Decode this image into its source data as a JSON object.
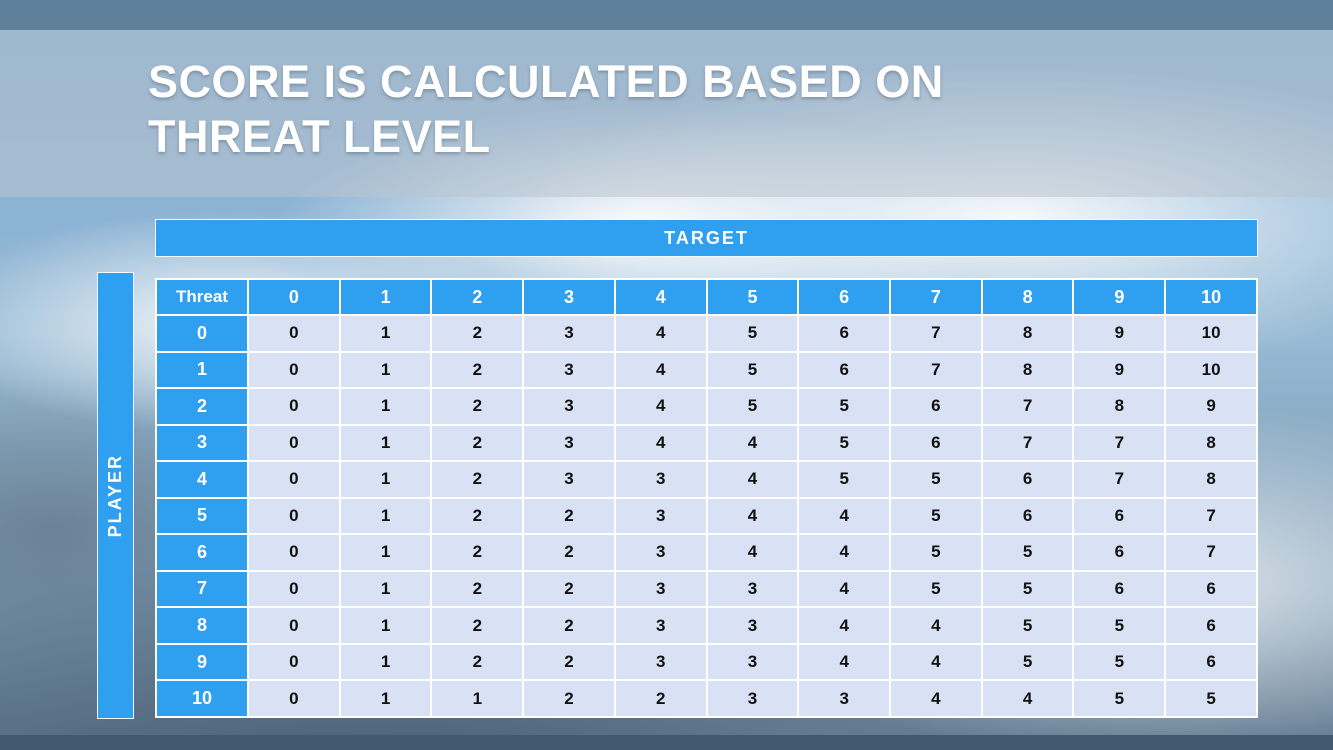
{
  "slide": {
    "title_line1": "SCORE IS CALCULATED BASED ON",
    "title_line2": "THREAT LEVEL"
  },
  "axes": {
    "target_label": "TARGET",
    "player_label": "PLAYER"
  },
  "table": {
    "corner_label": "Threat",
    "column_headers": [
      "0",
      "1",
      "2",
      "3",
      "4",
      "5",
      "6",
      "7",
      "8",
      "9",
      "10"
    ],
    "rows": [
      {
        "label": "0",
        "values": [
          "0",
          "1",
          "2",
          "3",
          "4",
          "5",
          "6",
          "7",
          "8",
          "9",
          "10"
        ]
      },
      {
        "label": "1",
        "values": [
          "0",
          "1",
          "2",
          "3",
          "4",
          "5",
          "6",
          "7",
          "8",
          "9",
          "10"
        ]
      },
      {
        "label": "2",
        "values": [
          "0",
          "1",
          "2",
          "3",
          "4",
          "5",
          "5",
          "6",
          "7",
          "8",
          "9"
        ]
      },
      {
        "label": "3",
        "values": [
          "0",
          "1",
          "2",
          "3",
          "4",
          "4",
          "5",
          "6",
          "7",
          "7",
          "8"
        ]
      },
      {
        "label": "4",
        "values": [
          "0",
          "1",
          "2",
          "3",
          "3",
          "4",
          "5",
          "5",
          "6",
          "7",
          "8"
        ]
      },
      {
        "label": "5",
        "values": [
          "0",
          "1",
          "2",
          "2",
          "3",
          "4",
          "4",
          "5",
          "6",
          "6",
          "7"
        ]
      },
      {
        "label": "6",
        "values": [
          "0",
          "1",
          "2",
          "2",
          "3",
          "4",
          "4",
          "5",
          "5",
          "6",
          "7"
        ]
      },
      {
        "label": "7",
        "values": [
          "0",
          "1",
          "2",
          "2",
          "3",
          "3",
          "4",
          "5",
          "5",
          "6",
          "6"
        ]
      },
      {
        "label": "8",
        "values": [
          "0",
          "1",
          "2",
          "2",
          "3",
          "3",
          "4",
          "4",
          "5",
          "5",
          "6"
        ]
      },
      {
        "label": "9",
        "values": [
          "0",
          "1",
          "2",
          "2",
          "3",
          "3",
          "4",
          "4",
          "5",
          "5",
          "6"
        ]
      },
      {
        "label": "10",
        "values": [
          "0",
          "1",
          "1",
          "2",
          "2",
          "3",
          "3",
          "4",
          "4",
          "5",
          "5"
        ]
      }
    ]
  },
  "colors": {
    "accent_blue": "#2f9ff0",
    "cell_bg": "#d9e2f4",
    "cell_text": "#111111",
    "top_bar": "#5e7f9a",
    "bottom_bar": "#42586c"
  }
}
